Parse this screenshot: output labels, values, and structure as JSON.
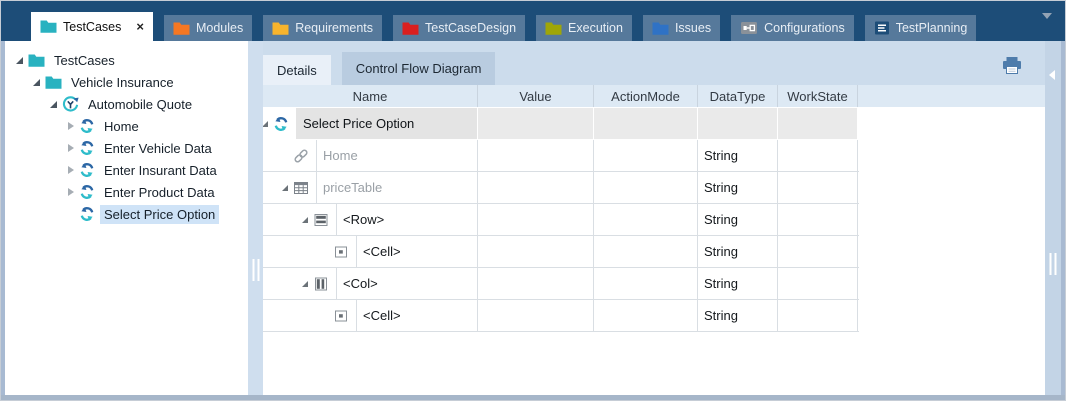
{
  "tab_bar": {
    "tabs": [
      {
        "label": "TestCases",
        "icon": "folder",
        "icon_color": "#29b2c0",
        "active": true,
        "close_label": "×"
      },
      {
        "label": "Modules",
        "icon": "folder",
        "icon_color": "#f57722"
      },
      {
        "label": "Requirements",
        "icon": "folder",
        "icon_color": "#f8b42c"
      },
      {
        "label": "TestCaseDesign",
        "icon": "folder",
        "icon_color": "#da1f1f"
      },
      {
        "label": "Execution",
        "icon": "folder",
        "icon_color": "#9fa608"
      },
      {
        "label": "Issues",
        "icon": "folder",
        "icon_color": "#2f72c5"
      },
      {
        "label": "Configurations",
        "icon": "plug"
      },
      {
        "label": "TestPlanning",
        "icon": "planning"
      }
    ],
    "colors": {
      "bar_bg": "#1d4d78",
      "inactive_tab_bg": "#56799b",
      "active_tab_bg": "#ffffff"
    }
  },
  "tree": {
    "items": [
      {
        "label": "TestCases",
        "level": 0,
        "icon": "folder",
        "icon_color": "#29b2c0",
        "state": "expanded"
      },
      {
        "label": "Vehicle Insurance",
        "level": 1,
        "icon": "folder",
        "icon_color": "#29b2c0",
        "state": "expanded"
      },
      {
        "label": "Automobile Quote",
        "level": 2,
        "icon": "testcase",
        "state": "expanded"
      },
      {
        "label": "Home",
        "level": 3,
        "icon": "sync",
        "state": "collapsed"
      },
      {
        "label": "Enter Vehicle Data",
        "level": 3,
        "icon": "sync",
        "state": "collapsed"
      },
      {
        "label": "Enter Insurant Data",
        "level": 3,
        "icon": "sync",
        "state": "collapsed"
      },
      {
        "label": "Enter Product Data",
        "level": 3,
        "icon": "sync",
        "state": "collapsed"
      },
      {
        "label": "Select Price Option",
        "level": 3,
        "icon": "sync",
        "state": "none",
        "selected": true
      }
    ],
    "selection_color": "#cfe3f7"
  },
  "details": {
    "tabs": [
      {
        "label": "Details",
        "active": true
      },
      {
        "label": "Control Flow Diagram",
        "active": false
      }
    ],
    "table": {
      "columns": [
        "Name",
        "Value",
        "ActionMode",
        "DataType",
        "WorkState"
      ],
      "rows": [
        {
          "name": "Select Price Option",
          "icon": "sync",
          "level": 0,
          "state": "expanded",
          "selected": true,
          "value": "",
          "action_mode": "",
          "data_type": "",
          "work_state": ""
        },
        {
          "name": "Home",
          "icon": "link",
          "level": 1,
          "state": "none",
          "muted": true,
          "value": "",
          "action_mode": "",
          "data_type": "String",
          "work_state": ""
        },
        {
          "name": "priceTable",
          "icon": "table",
          "level": 1,
          "state": "expanded",
          "muted": true,
          "value": "",
          "action_mode": "",
          "data_type": "String",
          "work_state": ""
        },
        {
          "name": "<Row>",
          "icon": "row",
          "level": 2,
          "state": "expanded",
          "value": "",
          "action_mode": "",
          "data_type": "String",
          "work_state": ""
        },
        {
          "name": "<Cell>",
          "icon": "cell",
          "level": 3,
          "state": "none",
          "value": "",
          "action_mode": "",
          "data_type": "String",
          "work_state": ""
        },
        {
          "name": "<Col>",
          "icon": "col",
          "level": 2,
          "state": "expanded",
          "value": "",
          "action_mode": "",
          "data_type": "String",
          "work_state": ""
        },
        {
          "name": "<Cell>",
          "icon": "cell",
          "level": 3,
          "state": "none",
          "value": "",
          "action_mode": "",
          "data_type": "String",
          "work_state": ""
        }
      ]
    }
  }
}
